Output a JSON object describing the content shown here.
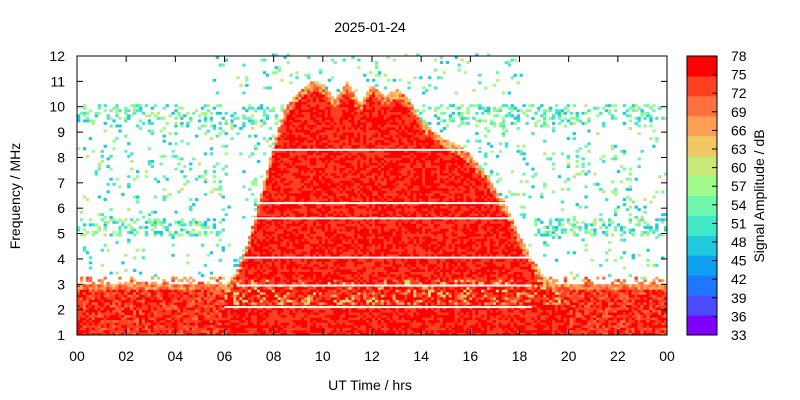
{
  "chart_data": {
    "type": "heatmap",
    "title": "2025-01-24",
    "xlabel": "UT Time / hrs",
    "ylabel": "Frequency / MHz",
    "colorbar_label": "Signal Amplitude / dB",
    "xlim": [
      0,
      24
    ],
    "ylim": [
      1,
      12
    ],
    "x_ticks": [
      "00",
      "02",
      "04",
      "06",
      "08",
      "10",
      "12",
      "14",
      "16",
      "18",
      "20",
      "22",
      "00"
    ],
    "y_ticks": [
      "1",
      "2",
      "3",
      "4",
      "5",
      "6",
      "7",
      "8",
      "9",
      "10",
      "11",
      "12"
    ],
    "colorbar_range": [
      33,
      78
    ],
    "colorbar_ticks": [
      "78",
      "75",
      "72",
      "69",
      "66",
      "63",
      "60",
      "57",
      "54",
      "51",
      "48",
      "45",
      "42",
      "39",
      "36",
      "33"
    ],
    "colormap": [
      "#8000ff",
      "#4b4bff",
      "#1e78ff",
      "#0ca0f0",
      "#22c8dd",
      "#40e8c8",
      "#6ff7b0",
      "#9efb8a",
      "#c8e87a",
      "#f0c864",
      "#ff9f55",
      "#ff7040",
      "#ff4020",
      "#ff0000"
    ],
    "upper_frequency_envelope": {
      "time_hrs": [
        6.0,
        6.5,
        7.0,
        7.5,
        8.0,
        8.5,
        9.0,
        9.5,
        10.0,
        10.5,
        11.0,
        11.5,
        12.0,
        12.5,
        13.0,
        13.5,
        14.0,
        14.5,
        15.0,
        15.5,
        16.0,
        16.5,
        17.0,
        17.5,
        18.0,
        18.5,
        19.0,
        19.5,
        20.0
      ],
      "freq_mhz": [
        2.9,
        3.5,
        4.8,
        6.6,
        8.5,
        10.0,
        10.6,
        11.0,
        10.9,
        10.3,
        11.0,
        10.1,
        10.9,
        10.4,
        10.7,
        10.3,
        9.5,
        9.0,
        8.7,
        8.5,
        8.1,
        7.5,
        6.8,
        6.0,
        4.9,
        4.0,
        3.3,
        3.0,
        2.9
      ]
    },
    "baseline_band_mhz": [
      1.0,
      3.0
    ]
  }
}
